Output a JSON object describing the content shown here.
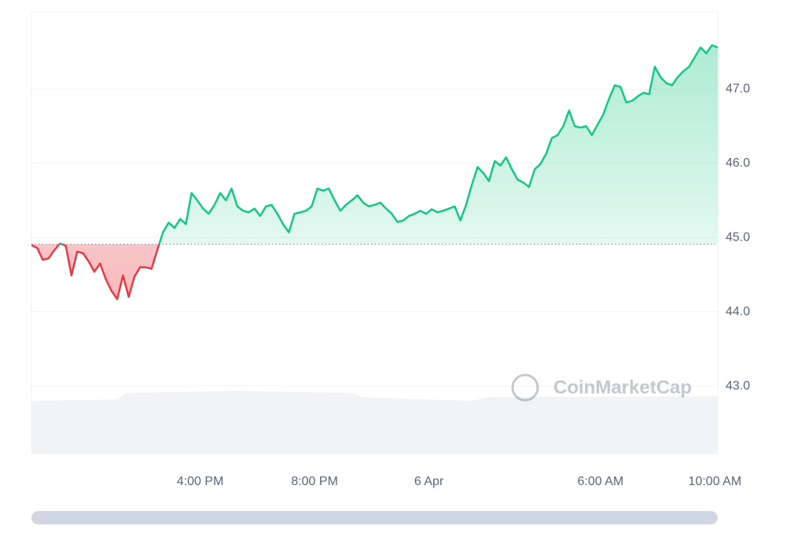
{
  "chart_data": {
    "type": "baseline-line",
    "watermark": "CoinMarketCap",
    "baseline": 44.91,
    "up_color": "#16c784",
    "down_color": "#ea3943",
    "xlim": [
      0,
      120
    ],
    "xticks": [
      {
        "value": 29.5,
        "label": "4:00 PM"
      },
      {
        "value": 49.5,
        "label": "8:00 PM"
      },
      {
        "value": 69.5,
        "label": "6 Apr"
      },
      {
        "value": 99.5,
        "label": "6:00 AM"
      },
      {
        "value": 119.5,
        "label": "10:00 AM"
      }
    ],
    "ylim": [
      42.09,
      48.04
    ],
    "yticks": [
      {
        "value": 43,
        "label": "43.0"
      },
      {
        "value": 44,
        "label": "44.0"
      },
      {
        "value": 45,
        "label": "45.0"
      },
      {
        "value": 46,
        "label": "46.0"
      },
      {
        "value": 47,
        "label": "47.0"
      }
    ],
    "grid": true,
    "values": [
      44.9,
      44.86,
      44.7,
      44.72,
      44.83,
      44.92,
      44.89,
      44.49,
      44.81,
      44.79,
      44.68,
      44.54,
      44.65,
      44.44,
      44.28,
      44.17,
      44.49,
      44.2,
      44.47,
      44.6,
      44.6,
      44.58,
      44.83,
      45.07,
      45.2,
      45.13,
      45.25,
      45.18,
      45.6,
      45.5,
      45.39,
      45.32,
      45.44,
      45.6,
      45.5,
      45.66,
      45.42,
      45.36,
      45.34,
      45.39,
      45.29,
      45.42,
      45.44,
      45.32,
      45.18,
      45.07,
      45.32,
      45.34,
      45.36,
      45.42,
      45.66,
      45.63,
      45.66,
      45.5,
      45.36,
      45.44,
      45.5,
      45.57,
      45.47,
      45.42,
      45.44,
      45.47,
      45.39,
      45.32,
      45.21,
      45.23,
      45.29,
      45.32,
      45.36,
      45.32,
      45.38,
      45.34,
      45.36,
      45.39,
      45.42,
      45.23,
      45.44,
      45.71,
      45.95,
      45.87,
      45.76,
      46.03,
      45.97,
      46.08,
      45.92,
      45.78,
      45.74,
      45.68,
      45.92,
      45.99,
      46.13,
      46.34,
      46.38,
      46.5,
      46.71,
      46.5,
      46.48,
      46.5,
      46.38,
      46.52,
      46.66,
      46.87,
      47.05,
      47.03,
      46.82,
      46.84,
      46.9,
      46.95,
      46.93,
      47.3,
      47.16,
      47.08,
      47.05,
      47.16,
      47.24,
      47.3,
      47.43,
      47.56,
      47.48,
      47.59,
      47.56
    ]
  }
}
